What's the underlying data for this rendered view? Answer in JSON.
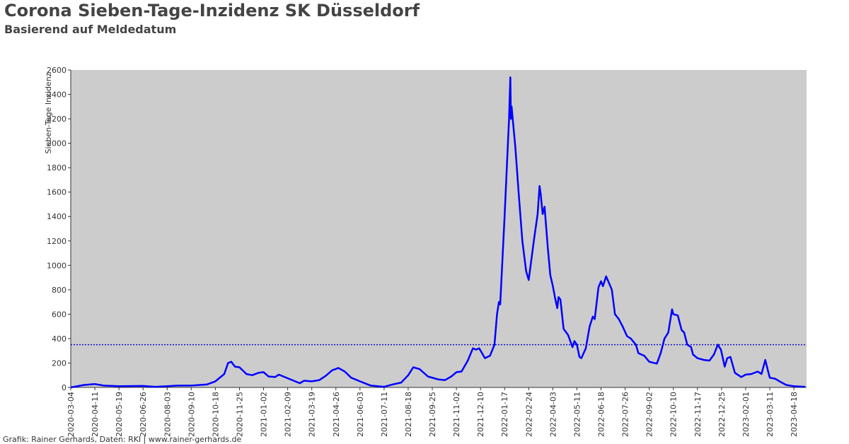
{
  "chart_data": {
    "type": "line",
    "title": "Corona Sieben-Tage-Inzidenz SK Düsseldorf",
    "subtitle": "Basierend auf Meldedatum",
    "ylabel": "Sieben-Tage Inzidenz",
    "footer": "Grafik: Rainer Gerhards, Daten: RKI | www.rainer-gerhards.de",
    "color": "#0000ff",
    "background": "#cccccc",
    "reference_line": 350,
    "reference_color": "#0000cc",
    "xlim": [
      "2020-03-04",
      "2023-05-08"
    ],
    "xticks": [
      "2020-03-04",
      "2020-04-11",
      "2020-05-19",
      "2020-06-26",
      "2020-08-03",
      "2020-09-10",
      "2020-10-18",
      "2020-11-25",
      "2021-01-02",
      "2021-02-09",
      "2021-03-19",
      "2021-04-26",
      "2021-06-03",
      "2021-07-11",
      "2021-08-18",
      "2021-09-25",
      "2021-11-02",
      "2021-12-10",
      "2022-01-17",
      "2022-02-24",
      "2022-04-03",
      "2022-05-11",
      "2022-06-18",
      "2022-07-26",
      "2022-09-02",
      "2022-10-10",
      "2022-11-17",
      "2022-12-25",
      "2023-02-01",
      "2023-03-11",
      "2023-04-18"
    ],
    "ylim": [
      0,
      2600
    ],
    "yticks": [
      0,
      200,
      400,
      600,
      800,
      1000,
      1200,
      1400,
      1600,
      1800,
      2000,
      2200,
      2400,
      2600
    ],
    "x": [
      "2020-03-04",
      "2020-03-25",
      "2020-04-11",
      "2020-04-25",
      "2020-05-19",
      "2020-06-26",
      "2020-07-15",
      "2020-08-03",
      "2020-08-20",
      "2020-09-10",
      "2020-10-05",
      "2020-10-18",
      "2020-11-01",
      "2020-11-07",
      "2020-11-12",
      "2020-11-18",
      "2020-11-25",
      "2020-12-06",
      "2020-12-15",
      "2020-12-25",
      "2021-01-02",
      "2021-01-10",
      "2021-01-20",
      "2021-01-26",
      "2021-02-09",
      "2021-02-28",
      "2021-03-07",
      "2021-03-19",
      "2021-03-31",
      "2021-04-10",
      "2021-04-20",
      "2021-04-30",
      "2021-05-10",
      "2021-05-20",
      "2021-06-03",
      "2021-06-20",
      "2021-07-11",
      "2021-07-25",
      "2021-08-07",
      "2021-08-18",
      "2021-08-26",
      "2021-09-05",
      "2021-09-18",
      "2021-10-05",
      "2021-10-15",
      "2021-10-25",
      "2021-11-02",
      "2021-11-10",
      "2021-11-20",
      "2021-11-28",
      "2021-12-03",
      "2021-12-08",
      "2021-12-17",
      "2021-12-25",
      "2022-01-01",
      "2022-01-05",
      "2022-01-08",
      "2022-01-10",
      "2022-01-17",
      "2022-01-24",
      "2022-01-26",
      "2022-01-27",
      "2022-01-28",
      "2022-02-03",
      "2022-02-08",
      "2022-02-14",
      "2022-02-20",
      "2022-02-24",
      "2022-03-04",
      "2022-03-10",
      "2022-03-13",
      "2022-03-15",
      "2022-03-18",
      "2022-03-21",
      "2022-03-26",
      "2022-03-30",
      "2022-04-03",
      "2022-04-07",
      "2022-04-10",
      "2022-04-12",
      "2022-04-15",
      "2022-04-20",
      "2022-04-27",
      "2022-05-04",
      "2022-05-07",
      "2022-05-11",
      "2022-05-15",
      "2022-05-18",
      "2022-05-25",
      "2022-05-31",
      "2022-06-05",
      "2022-06-08",
      "2022-06-14",
      "2022-06-18",
      "2022-06-21",
      "2022-06-26",
      "2022-07-01",
      "2022-07-05",
      "2022-07-10",
      "2022-07-16",
      "2022-07-22",
      "2022-07-29",
      "2022-08-04",
      "2022-08-12",
      "2022-08-16",
      "2022-08-25",
      "2022-09-02",
      "2022-09-14",
      "2022-09-20",
      "2022-09-26",
      "2022-10-02",
      "2022-10-08",
      "2022-10-10",
      "2022-10-17",
      "2022-10-23",
      "2022-10-27",
      "2022-11-01",
      "2022-11-07",
      "2022-11-10",
      "2022-11-17",
      "2022-11-27",
      "2022-12-06",
      "2022-12-13",
      "2022-12-19",
      "2022-12-24",
      "2022-12-30",
      "2023-01-03",
      "2023-01-08",
      "2023-01-15",
      "2023-01-25",
      "2023-02-01",
      "2023-02-10",
      "2023-02-20",
      "2023-02-26",
      "2023-03-04",
      "2023-03-08",
      "2023-03-11",
      "2023-03-20",
      "2023-03-28",
      "2023-04-06",
      "2023-04-18",
      "2023-05-06"
    ],
    "values": [
      0,
      20,
      28,
      15,
      10,
      12,
      5,
      10,
      15,
      15,
      25,
      50,
      110,
      200,
      210,
      170,
      165,
      110,
      100,
      120,
      125,
      90,
      85,
      105,
      75,
      35,
      55,
      50,
      60,
      95,
      140,
      160,
      130,
      80,
      50,
      15,
      5,
      25,
      40,
      100,
      165,
      150,
      90,
      65,
      60,
      90,
      125,
      130,
      220,
      320,
      310,
      320,
      240,
      260,
      350,
      600,
      700,
      680,
      1400,
      2200,
      2540,
      2200,
      2300,
      1960,
      1600,
      1200,
      950,
      880,
      1200,
      1420,
      1650,
      1580,
      1420,
      1480,
      1150,
      920,
      830,
      720,
      650,
      740,
      720,
      480,
      430,
      330,
      380,
      350,
      250,
      240,
      320,
      500,
      580,
      560,
      820,
      870,
      830,
      910,
      850,
      800,
      600,
      560,
      500,
      420,
      400,
      350,
      280,
      260,
      210,
      195,
      280,
      400,
      450,
      640,
      600,
      590,
      470,
      450,
      350,
      330,
      270,
      240,
      225,
      220,
      270,
      350,
      310,
      170,
      240,
      250,
      120,
      85,
      105,
      110,
      130,
      110,
      225,
      140,
      80,
      70,
      45,
      20,
      10,
      5
    ]
  }
}
